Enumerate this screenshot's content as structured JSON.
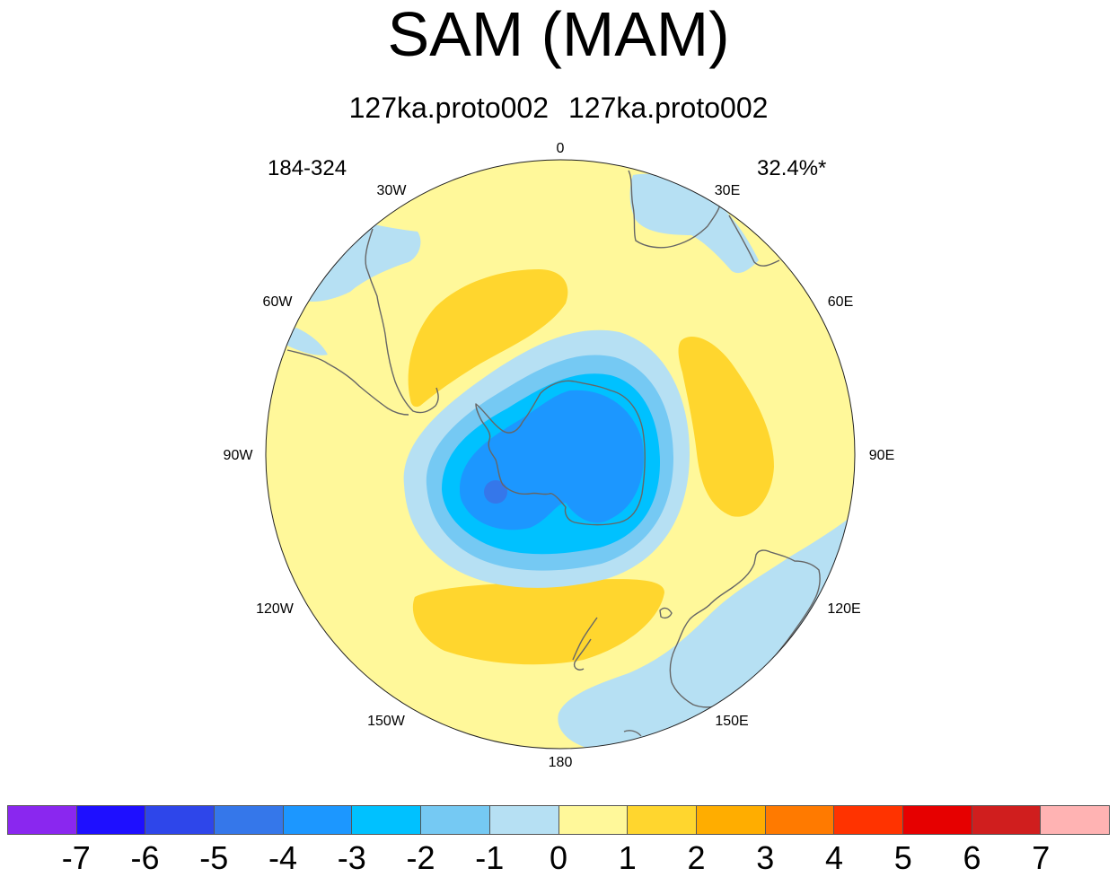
{
  "title": "SAM (MAM)",
  "subtitle": {
    "left": "127ka.proto002",
    "right": "127ka.proto002"
  },
  "period_label": "184-324",
  "variance_label": "32.4%*",
  "longitude_labels": [
    "0",
    "30E",
    "60E",
    "90E",
    "120E",
    "150E",
    "180",
    "150W",
    "120W",
    "90W",
    "60W",
    "30W"
  ],
  "map": {
    "projection": "south polar stereographic",
    "regions": [
      {
        "name": "background",
        "level_range": "0 to 1"
      },
      {
        "name": "atlantic-positive-lobe",
        "level_range": "1 to 2"
      },
      {
        "name": "indian-positive-lobe",
        "level_range": "1 to 2"
      },
      {
        "name": "pacific-positive-lobe",
        "level_range": "1 to 2"
      },
      {
        "name": "polar-negative-center",
        "level_range": "-5 to -1"
      },
      {
        "name": "southern-africa-negative",
        "level_range": "-1 to 0"
      },
      {
        "name": "south-america-negative",
        "level_range": "-1 to 0"
      },
      {
        "name": "australia-negative",
        "level_range": "-1 to 0"
      }
    ]
  },
  "colorbar": {
    "colors": [
      "#8a27ef",
      "#1e0fff",
      "#2e46ea",
      "#3577ea",
      "#1c97ff",
      "#00c1ff",
      "#75c9f3",
      "#b6e0f3",
      "#fff89a",
      "#ffd62e",
      "#ffad00",
      "#ff7a00",
      "#ff3300",
      "#e60000",
      "#d01e1e",
      "#ffb3b3"
    ],
    "labels": [
      "-7",
      "-6",
      "-5",
      "-4",
      "-3",
      "-2",
      "-1",
      "0",
      "1",
      "2",
      "3",
      "4",
      "5",
      "6",
      "7"
    ]
  }
}
